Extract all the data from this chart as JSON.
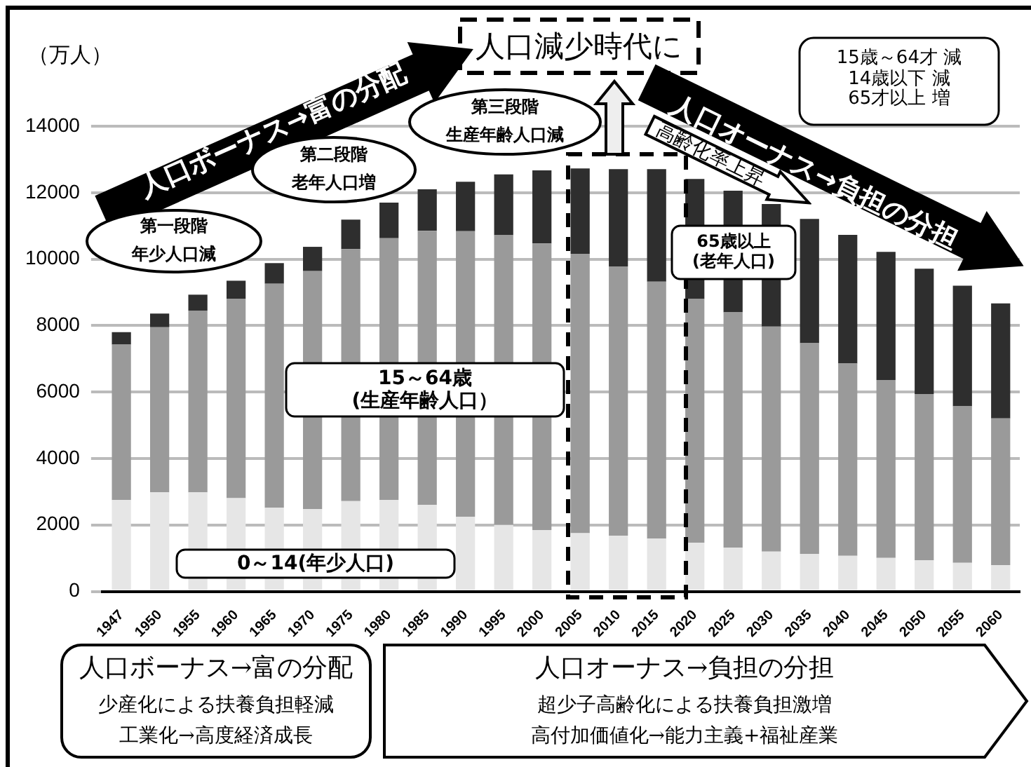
{
  "chart_data": {
    "type": "bar",
    "stacked": true,
    "ylabel": "（万人）",
    "categories": [
      "1947",
      "1950",
      "1955",
      "1960",
      "1965",
      "1970",
      "1975",
      "1980",
      "1985",
      "1990",
      "1995",
      "2000",
      "2005",
      "2010",
      "2015",
      "2020",
      "2025",
      "2030",
      "2035",
      "2040",
      "2045",
      "2050",
      "2055",
      "2060"
    ],
    "series": [
      {
        "name": "0～14(年少人口)",
        "color": "#e6e6e6",
        "values": [
          2750,
          2980,
          2980,
          2810,
          2520,
          2480,
          2720,
          2750,
          2600,
          2250,
          2000,
          1850,
          1750,
          1680,
          1590,
          1460,
          1320,
          1200,
          1130,
          1070,
          1010,
          940,
          860,
          790
        ]
      },
      {
        "name": "15～64歳\n(生産年齢人口）",
        "color": "#9a9a9a",
        "values": [
          4680,
          4970,
          5470,
          6000,
          6740,
          7160,
          7580,
          7880,
          8250,
          8590,
          8720,
          8620,
          8410,
          8100,
          7730,
          7340,
          7080,
          6770,
          6340,
          5790,
          5350,
          5000,
          4710,
          4420
        ]
      },
      {
        "name": "65歳以上\n(老年人口)",
        "color": "#2e2e2e",
        "values": [
          370,
          410,
          480,
          540,
          620,
          730,
          890,
          1070,
          1250,
          1490,
          1830,
          2200,
          2570,
          2930,
          3390,
          3610,
          3660,
          3690,
          3740,
          3870,
          3860,
          3770,
          3630,
          3460
        ]
      }
    ],
    "ylim": [
      0,
      14000
    ],
    "yticks": [
      0,
      2000,
      4000,
      6000,
      8000,
      10000,
      12000,
      14000
    ],
    "grid": "y",
    "legend": false,
    "annotations": [
      "人口減少時代に",
      "人口ボーナス→富の分配",
      "人口オーナス→負担の分担",
      "高齢化率上昇",
      "第一段階",
      "年少人口減",
      "第二段階",
      "老年人口増",
      "第三段階",
      "生産年齢人口減",
      "15歳～64才 減\n14歳以下 減\n65才以上 増",
      "人口ボーナス→富の分配",
      "少産化による扶養負担軽減",
      "工業化→高度経済成長",
      "人口オーナス→負担の分担",
      "超少子高齢化による扶養負担激増",
      "高付加価値化→能力主義+福祉産業"
    ]
  }
}
